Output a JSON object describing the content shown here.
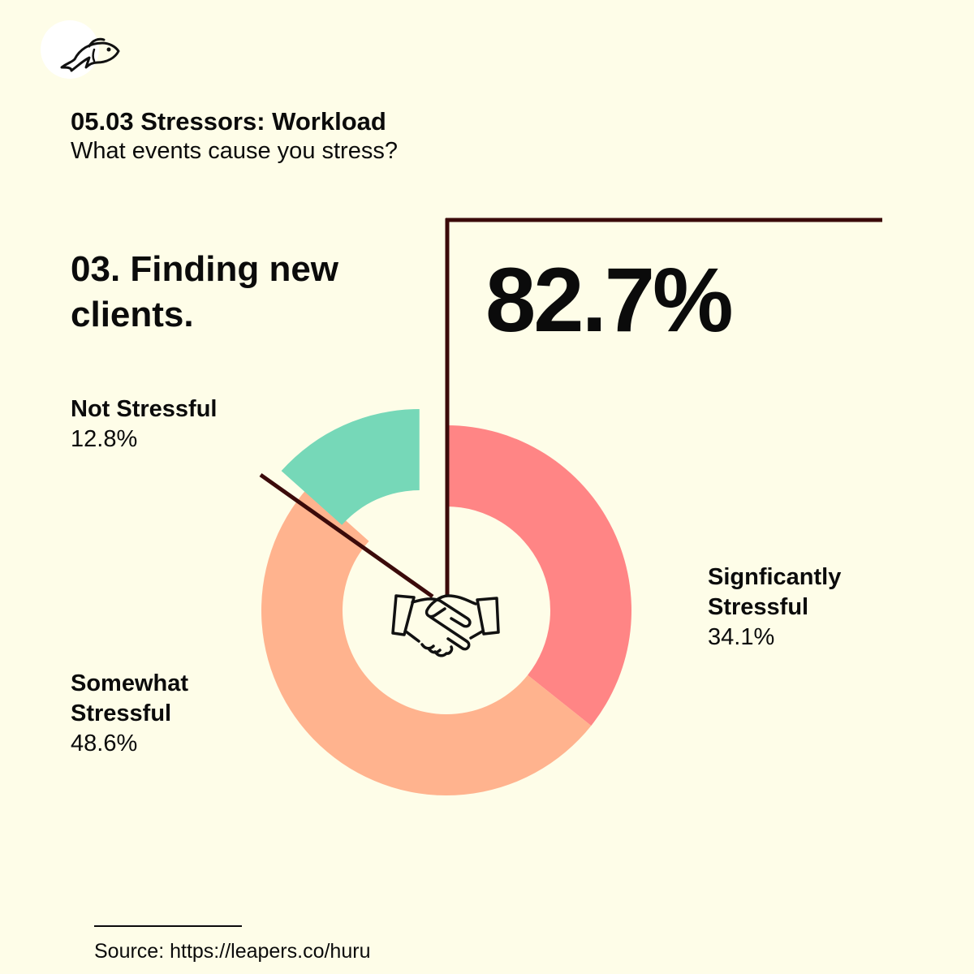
{
  "logo": {
    "icon": "fish-icon"
  },
  "header": {
    "title": "05.03 Stressors: Workload",
    "subtitle": "What events cause you stress?"
  },
  "question": "03. Finding new clients.",
  "highlight_value": "82.7%",
  "chart_data": {
    "type": "pie",
    "style": "donut",
    "center_icon": "handshake-icon",
    "slices": [
      {
        "name": "Signficantly Stressful",
        "value": 34.1,
        "label": "34.1%",
        "color": "#FF8585"
      },
      {
        "name": "Somewhat Stressful",
        "value": 48.6,
        "label": "48.6%",
        "color": "#FFB38E"
      },
      {
        "name": "Not Stressful",
        "value": 12.8,
        "label": "12.8%",
        "color": "#76D8B8"
      }
    ]
  },
  "labels": {
    "not_stressful": {
      "name": "Not Stressful",
      "value": "12.8%"
    },
    "significantly_stressful": {
      "name": "Signficantly Stressful",
      "value": "34.1%"
    },
    "somewhat_stressful": {
      "name": "Somewhat Stressful",
      "value": "48.6%"
    }
  },
  "source": "Source: https://leapers.co/huru",
  "colors": {
    "background": "#FEFDE8",
    "leader_line": "#3B0A0A"
  }
}
